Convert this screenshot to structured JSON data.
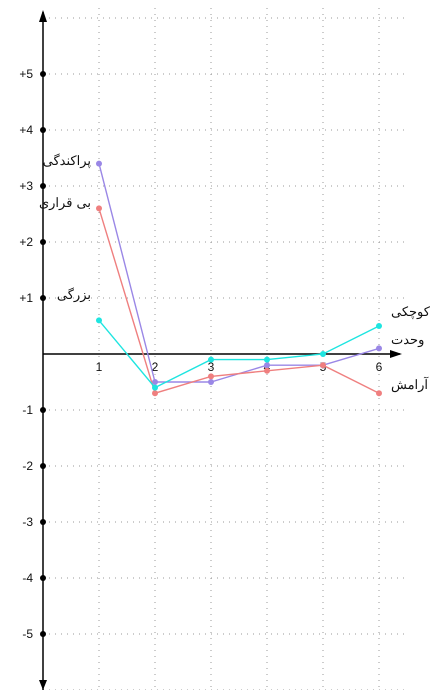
{
  "chart_data": {
    "type": "line",
    "x": [
      1,
      2,
      3,
      4,
      5,
      6
    ],
    "x_ticks": [
      "1",
      "2",
      "3",
      "4",
      "5",
      "6"
    ],
    "y_ticks": [
      "+5",
      "+4",
      "+3",
      "+2",
      "+1",
      "-1",
      "-2",
      "-3",
      "-4",
      "-5"
    ],
    "ylim": [
      -5.7,
      6.1
    ],
    "xlim": [
      0,
      6.6
    ],
    "grid": true,
    "series": [
      {
        "color": "#9a87e6",
        "values": [
          3.4,
          -0.5,
          -0.5,
          -0.2,
          -0.2,
          0.1
        ],
        "labels": [
          {
            "text": "پراکندگی",
            "x": 1,
            "y": 3.45
          },
          {
            "text": "وحدت",
            "x": 6,
            "y": 0.25
          }
        ]
      },
      {
        "color": "#ef7f7f",
        "values": [
          2.6,
          -0.7,
          -0.4,
          -0.3,
          -0.2,
          -0.7
        ],
        "labels": [
          {
            "text": "بی قراری",
            "x": 1,
            "y": 2.7
          },
          {
            "text": "آرامش",
            "x": 6,
            "y": -0.55
          }
        ]
      },
      {
        "color": "#1ee5e0",
        "values": [
          0.6,
          -0.6,
          -0.1,
          -0.1,
          0.0,
          0.5
        ],
        "labels": [
          {
            "text": "بزرگی",
            "x": 1,
            "y": 1.05
          },
          {
            "text": "کوچکی",
            "x": 6,
            "y": 0.75
          }
        ]
      }
    ]
  }
}
